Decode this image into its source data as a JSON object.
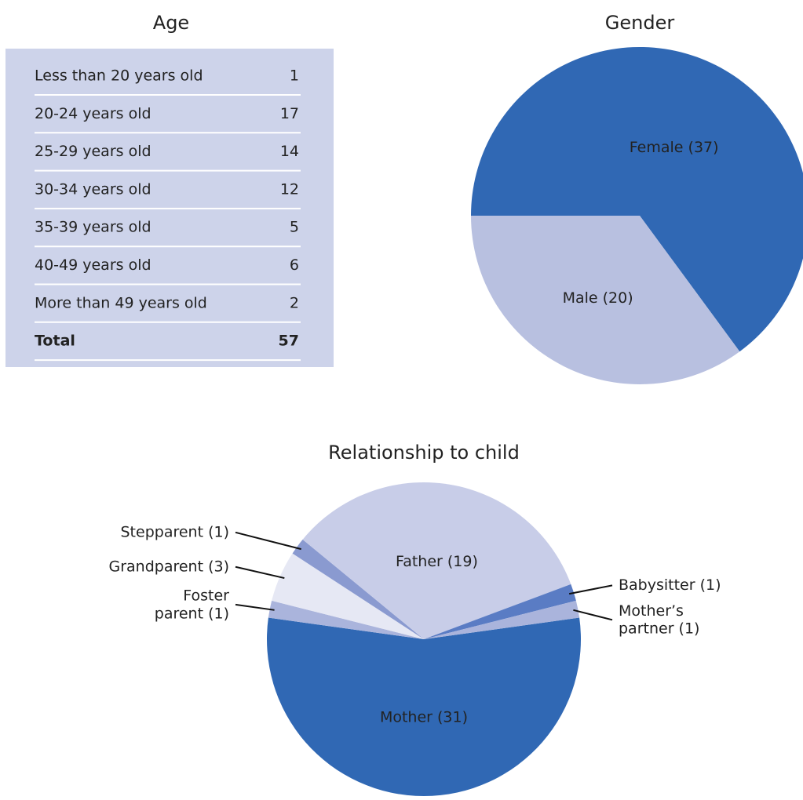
{
  "age_table": {
    "title": "Age",
    "rows": [
      [
        "Less than 20 years old",
        1
      ],
      [
        "20-24 years old",
        17
      ],
      [
        "25-29 years old",
        14
      ],
      [
        "30-34 years old",
        12
      ],
      [
        "35-39 years old",
        5
      ],
      [
        "40-49 years old",
        6
      ],
      [
        "More than 49 years old",
        2
      ]
    ],
    "total": [
      "Total",
      57
    ]
  },
  "chart_data": [
    {
      "type": "pie",
      "title": "Gender",
      "categories": [
        "Female (37)",
        "Male (20)"
      ],
      "values": [
        37,
        20
      ],
      "colors": [
        "#3068b4",
        "#b8c0e0"
      ]
    },
    {
      "type": "pie",
      "title": "Relationship to child",
      "categories": [
        "Mother (31)",
        "Foster\nparent (1)",
        "Grandparent (3)",
        "Stepparent (1)",
        "Father (19)",
        "Babysitter (1)",
        "Mother’s\npartner (1)"
      ],
      "values": [
        31,
        1,
        3,
        1,
        19,
        1,
        1
      ],
      "colors": [
        "#3068b4",
        "#aab4dc",
        "#e6e8f4",
        "#8a9ad0",
        "#c8cde8",
        "#5a7cc4",
        "#aab4dc"
      ]
    }
  ]
}
